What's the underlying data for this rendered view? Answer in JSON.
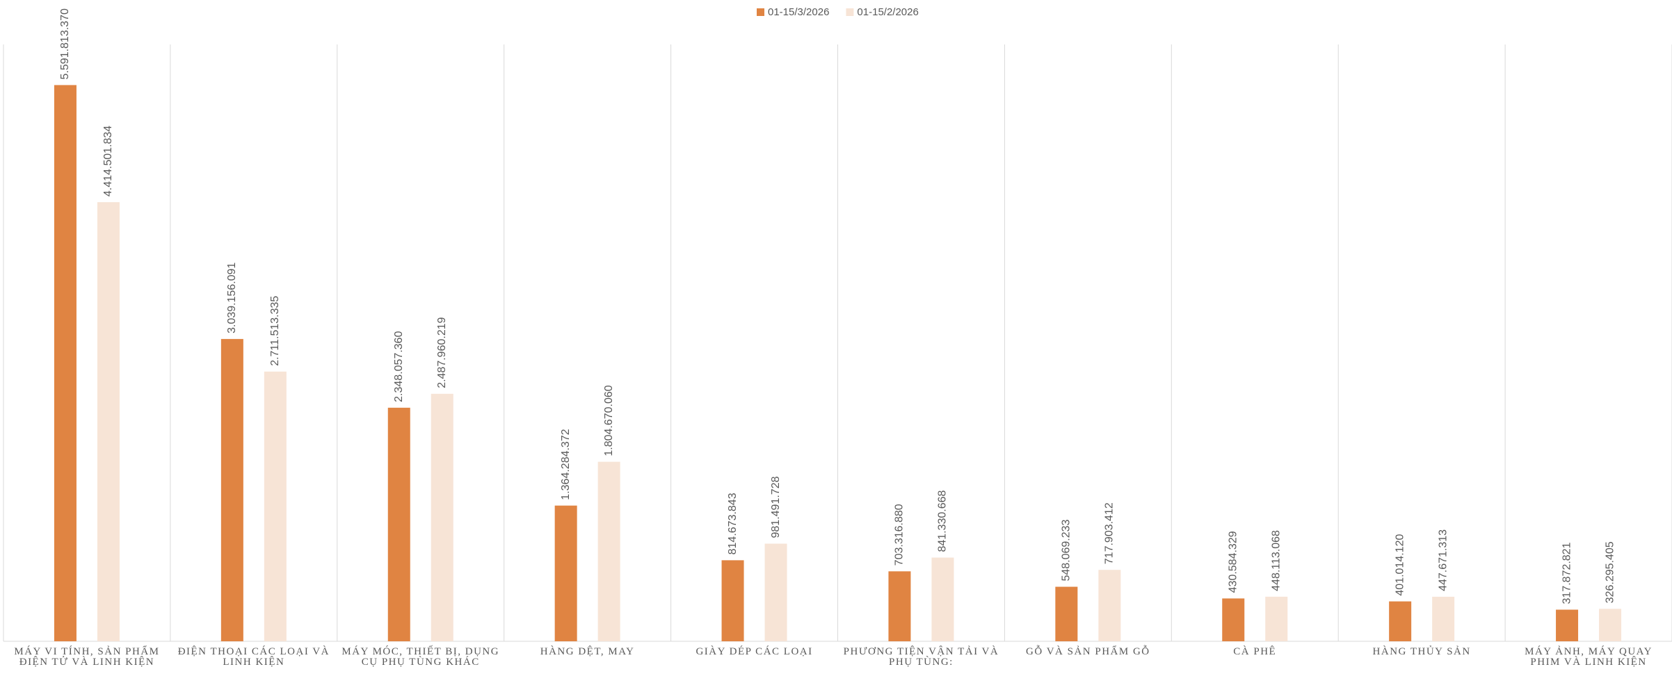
{
  "chart_data": {
    "type": "bar",
    "categories": [
      "MÁY VI TÍNH, SẢN PHẨM ĐIỆN TỬ VÀ LINH KIỆN",
      "ĐIỆN THOẠI CÁC LOẠI VÀ LINH KIỆN",
      "MÁY MÓC, THIẾT BỊ, DỤNG CỤ PHỤ TÙNG KHÁC",
      "HÀNG DỆT, MAY",
      "GIÀY DÉP CÁC LOẠI",
      "PHƯƠNG TIỆN VẬN TẢI VÀ PHỤ TÙNG:",
      "GỖ VÀ SẢN PHẨM GỖ",
      "CÀ PHÊ",
      "HÀNG THỦY SẢN",
      "MÁY ẢNH, MÁY QUAY PHIM VÀ LINH KIỆN"
    ],
    "series": [
      {
        "name": "01-15/3/2026",
        "color": "#e08442",
        "values": [
          5591813370,
          3039156091,
          2348057360,
          1364284372,
          814673843,
          703316880,
          548069233,
          430584329,
          401014120,
          317872821
        ],
        "value_labels": [
          "5.591.813.370",
          "3.039.156.091",
          "2.348.057.360",
          "1.364.284.372",
          "814.673.843",
          "703.316.880",
          "548.069.233",
          "430.584.329",
          "401.014.120",
          "317.872.821"
        ]
      },
      {
        "name": "01-15/2/2026",
        "color": "#f7e4d6",
        "values": [
          4414501834,
          2711513335,
          2487960219,
          1804670060,
          981491728,
          841330668,
          717903412,
          448113068,
          447671313,
          326295405
        ],
        "value_labels": [
          "4.414.501.834",
          "2.711.513.335",
          "2.487.960.219",
          "1.804.670.060",
          "981.491.728",
          "841.330.668",
          "717.903.412",
          "448.113.068",
          "447.671.313",
          "326.295.405"
        ]
      }
    ],
    "ylim": [
      0,
      6000000000
    ],
    "legend": "top"
  }
}
